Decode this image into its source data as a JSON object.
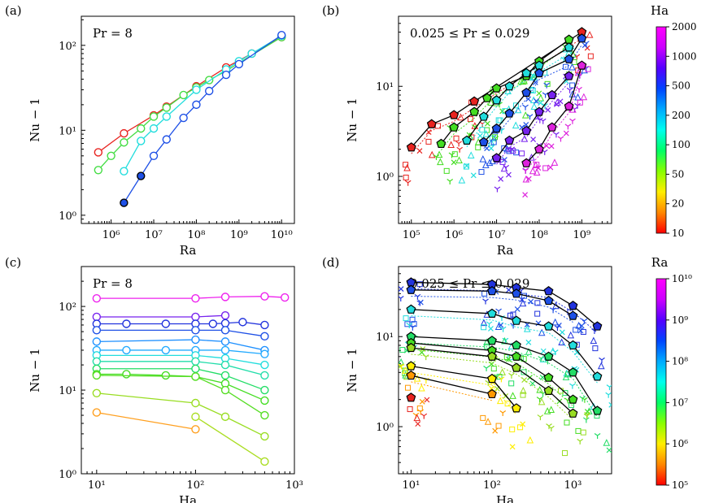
{
  "colors": {
    "ha_colorbar": [
      "#ff0000",
      "#ff8800",
      "#ffee00",
      "#88ff00",
      "#00ff66",
      "#00ffee",
      "#00aaff",
      "#0044ff",
      "#5500ff",
      "#cc00ff",
      "#ff00ff"
    ],
    "ra_colorbar": [
      "#ff0000",
      "#ff8800",
      "#ffee00",
      "#88ff00",
      "#00ff66",
      "#00ffee",
      "#00aaff",
      "#0044ff",
      "#5500ff",
      "#cc00ff",
      "#ff00ff"
    ]
  },
  "chart_data": [
    {
      "panel": "(a)",
      "type": "line",
      "annotation": "Pr = 8",
      "xlabel": "Ra",
      "ylabel": "Nu − 1",
      "xscale": "log",
      "yscale": "log",
      "xlim": [
        200000,
        20000000000
      ],
      "ylim": [
        0.8,
        220
      ],
      "xticks": [
        {
          "v": 1000000,
          "label": "10⁶"
        },
        {
          "v": 10000000,
          "label": "10⁷"
        },
        {
          "v": 100000000,
          "label": "10⁸"
        },
        {
          "v": 1000000000,
          "label": "10⁹"
        },
        {
          "v": 10000000000,
          "label": "10¹⁰"
        }
      ],
      "yticks": [
        {
          "v": 1,
          "label": "10⁰"
        },
        {
          "v": 10,
          "label": "10¹"
        },
        {
          "v": 100,
          "label": "10²"
        }
      ],
      "series": [
        {
          "color": "#e8231f",
          "x": [
            500000,
            2000000,
            10000000,
            20000000,
            100000000,
            500000000,
            2000000000,
            10000000000
          ],
          "y": [
            5.5,
            9.2,
            15.0,
            19.0,
            33,
            55,
            80,
            125
          ],
          "filled": [
            false,
            false,
            false,
            false,
            false,
            false,
            false,
            false
          ]
        },
        {
          "color": "#44dd44",
          "x": [
            500000,
            1000000,
            2000000,
            5000000,
            10000000,
            20000000,
            50000000,
            100000000,
            200000000,
            500000000,
            1000000000,
            10000000000
          ],
          "y": [
            3.4,
            5.0,
            7.2,
            10.5,
            14.5,
            18.5,
            26,
            32,
            39,
            50,
            62,
            125
          ],
          "filled": [
            false,
            false,
            false,
            false,
            false,
            false,
            false,
            false,
            false,
            false,
            false,
            false
          ]
        },
        {
          "color": "#22dddd",
          "x": [
            2000000,
            5000000,
            10000000,
            20000000,
            100000000,
            500000000,
            1000000000,
            2000000000,
            10000000000
          ],
          "y": [
            3.3,
            7.5,
            10.5,
            14.5,
            30,
            52,
            65,
            80,
            130
          ],
          "filled": [
            false,
            false,
            false,
            false,
            false,
            false,
            false,
            false,
            false
          ]
        },
        {
          "color": "#1e50e6",
          "x": [
            2000000,
            5000000,
            10000000,
            20000000,
            50000000,
            100000000,
            200000000,
            500000000,
            1000000000,
            10000000000
          ],
          "y": [
            1.4,
            2.9,
            5.0,
            7.8,
            14,
            20,
            29,
            45,
            60,
            132
          ],
          "filled": [
            true,
            true,
            false,
            false,
            false,
            false,
            false,
            false,
            false,
            false
          ]
        }
      ]
    },
    {
      "panel": "(b)",
      "type": "scatter",
      "annotation": "0.025 ≤ Pr ≤ 0.029",
      "xlabel": "Ra",
      "ylabel": "Nu − 1",
      "xscale": "log",
      "yscale": "log",
      "xlim": [
        50000,
        5000000000
      ],
      "ylim": [
        0.3,
        60
      ],
      "xticks": [
        {
          "v": 100000,
          "label": "10⁵"
        },
        {
          "v": 1000000,
          "label": "10⁶"
        },
        {
          "v": 10000000,
          "label": "10⁷"
        },
        {
          "v": 100000000,
          "label": "10⁸"
        },
        {
          "v": 1000000000,
          "label": "10⁹"
        }
      ],
      "yticks": [
        {
          "v": 1,
          "label": "10⁰"
        },
        {
          "v": 10,
          "label": "10¹"
        }
      ],
      "series": [
        {
          "color": "#e8231f",
          "x": [
            100000,
            300000,
            1000000,
            3000000,
            1000000000
          ],
          "y": [
            2.1,
            3.8,
            4.8,
            6.8,
            40
          ]
        },
        {
          "color": "#44dd22",
          "x": [
            500000,
            1000000,
            3000000,
            6000000,
            10000000,
            50000000,
            100000000,
            500000000
          ],
          "y": [
            2.3,
            3.5,
            5.2,
            7.4,
            9.5,
            13,
            19,
            33
          ]
        },
        {
          "color": "#22dddd",
          "x": [
            2000000,
            5000000,
            10000000,
            20000000,
            50000000,
            100000000,
            500000000
          ],
          "y": [
            2.5,
            4.6,
            7.0,
            10,
            14,
            17,
            27
          ]
        },
        {
          "color": "#1e50e6",
          "x": [
            5000000,
            10000000,
            20000000,
            50000000,
            100000000,
            500000000,
            1000000000
          ],
          "y": [
            2.4,
            3.4,
            5.0,
            8.5,
            14,
            20,
            34
          ]
        },
        {
          "color": "#7722ee",
          "x": [
            10000000,
            20000000,
            50000000,
            100000000,
            200000000,
            500000000
          ],
          "y": [
            1.6,
            2.5,
            3.2,
            5.2,
            8,
            13
          ]
        },
        {
          "color": "#dd22dd",
          "x": [
            50000000,
            100000000,
            200000000,
            500000000,
            1000000000
          ],
          "y": [
            1.4,
            2.0,
            3.5,
            6.0,
            17
          ]
        }
      ],
      "scattered_markers": "crosses, triangles, squares, diamonds in matching colors"
    },
    {
      "panel": "(c)",
      "type": "line",
      "annotation": "Pr = 8",
      "xlabel": "Ha",
      "ylabel": "Nu − 1",
      "xscale": "log",
      "yscale": "log",
      "xlim": [
        7,
        1000
      ],
      "ylim": [
        1,
        300
      ],
      "xticks": [
        {
          "v": 10,
          "label": "10¹"
        },
        {
          "v": 100,
          "label": "10²"
        },
        {
          "v": 1000,
          "label": "10³"
        }
      ],
      "yticks": [
        {
          "v": 1,
          "label": "10⁰"
        },
        {
          "v": 10,
          "label": "10¹"
        },
        {
          "v": 100,
          "label": "10²"
        }
      ],
      "series": [
        {
          "color": "#ee22ee",
          "x": [
            10,
            100,
            200,
            500,
            800
          ],
          "y": [
            125,
            125,
            130,
            132,
            128
          ]
        },
        {
          "color": "#7722ee",
          "x": [
            10,
            100,
            200
          ],
          "y": [
            75,
            75,
            78
          ]
        },
        {
          "color": "#2233dd",
          "x": [
            10,
            20,
            50,
            100,
            150,
            200,
            300,
            500
          ],
          "y": [
            62,
            62,
            62,
            62,
            62,
            63,
            65,
            60
          ]
        },
        {
          "color": "#1e50e6",
          "x": [
            10,
            100,
            200,
            500
          ],
          "y": [
            52,
            52,
            52,
            44
          ]
        },
        {
          "color": "#1e90ff",
          "x": [
            10,
            100,
            200,
            500
          ],
          "y": [
            38,
            40,
            38,
            30
          ]
        },
        {
          "color": "#22aaff",
          "x": [
            10,
            20,
            50,
            100,
            200,
            500
          ],
          "y": [
            30,
            30,
            30,
            30,
            30,
            27
          ]
        },
        {
          "color": "#22dddd",
          "x": [
            10,
            100,
            200,
            500
          ],
          "y": [
            26,
            26,
            24,
            20
          ]
        },
        {
          "color": "#22ddaa",
          "x": [
            10,
            100,
            200,
            500
          ],
          "y": [
            22,
            22,
            20,
            15
          ]
        },
        {
          "color": "#22dd66",
          "x": [
            10,
            100,
            200,
            500
          ],
          "y": [
            18,
            18,
            15,
            10
          ]
        },
        {
          "color": "#44dd22",
          "x": [
            10,
            20,
            50,
            100,
            200,
            500
          ],
          "y": [
            15.5,
            15.5,
            15,
            14.5,
            12,
            7.5
          ]
        },
        {
          "color": "#55dd22",
          "x": [
            10,
            100,
            200,
            500
          ],
          "y": [
            15,
            14.5,
            10,
            5
          ]
        },
        {
          "color": "#99dd22",
          "x": [
            10,
            100,
            200,
            500
          ],
          "y": [
            9.2,
            7,
            4.8,
            2.8
          ]
        },
        {
          "color": "#aadd22",
          "x": [
            100,
            500
          ],
          "y": [
            4.8,
            1.4
          ]
        },
        {
          "color": "#ffa020",
          "x": [
            10,
            100
          ],
          "y": [
            5.4,
            3.4
          ]
        }
      ]
    },
    {
      "panel": "(d)",
      "type": "scatter",
      "annotation": "0.025 ≤ Pr ≤ 0.029",
      "xlabel": "Ha",
      "ylabel": "Nu − 1",
      "xscale": "log",
      "yscale": "log",
      "xlim": [
        7,
        3000
      ],
      "ylim": [
        0.3,
        60
      ],
      "xticks": [
        {
          "v": 10,
          "label": "10¹"
        },
        {
          "v": 100,
          "label": "10²"
        },
        {
          "v": 1000,
          "label": "10³"
        }
      ],
      "yticks": [
        {
          "v": 1,
          "label": "10⁰"
        },
        {
          "v": 10,
          "label": "10¹"
        }
      ],
      "series": [
        {
          "color": "#2233dd",
          "x": [
            10,
            100,
            200,
            500,
            1000,
            2000
          ],
          "y": [
            40,
            38,
            35,
            32,
            22,
            13
          ]
        },
        {
          "color": "#1e50e6",
          "x": [
            10,
            100,
            200,
            500,
            1000
          ],
          "y": [
            33,
            32,
            30,
            25,
            17
          ]
        },
        {
          "color": "#22dddd",
          "x": [
            10,
            100,
            200,
            500,
            1000,
            2000
          ],
          "y": [
            20,
            18,
            15,
            13,
            8,
            3.6
          ]
        },
        {
          "color": "#22dd66",
          "x": [
            10,
            100,
            200,
            500,
            1000,
            2000
          ],
          "y": [
            10,
            9,
            8,
            6,
            4,
            1.5
          ]
        },
        {
          "color": "#44dd22",
          "x": [
            10,
            100,
            200,
            500,
            1000
          ],
          "y": [
            8.5,
            7,
            6,
            3.5,
            2.0
          ]
        },
        {
          "color": "#99dd22",
          "x": [
            10,
            100,
            200,
            500,
            1000
          ],
          "y": [
            7.5,
            6,
            4.5,
            2.5,
            1.4
          ]
        },
        {
          "color": "#ffee00",
          "x": [
            10,
            100,
            200
          ],
          "y": [
            4.7,
            3.4,
            1.6
          ]
        },
        {
          "color": "#ff9900",
          "x": [
            10,
            100
          ],
          "y": [
            3.7,
            2.3
          ]
        },
        {
          "color": "#e8231f",
          "x": [
            10
          ],
          "y": [
            2.1
          ]
        }
      ],
      "scattered_markers": "crosses, triangles, squares, asterisks in matching colors"
    }
  ],
  "colorbars": [
    {
      "title": "Ha",
      "ticks": [
        "2000",
        "1000",
        "500",
        "200",
        "100",
        "50",
        "20",
        "10"
      ]
    },
    {
      "title": "Ra",
      "ticks": [
        "10¹⁰",
        "10⁹",
        "10⁸",
        "10⁷",
        "10⁶",
        "10⁵"
      ]
    }
  ]
}
